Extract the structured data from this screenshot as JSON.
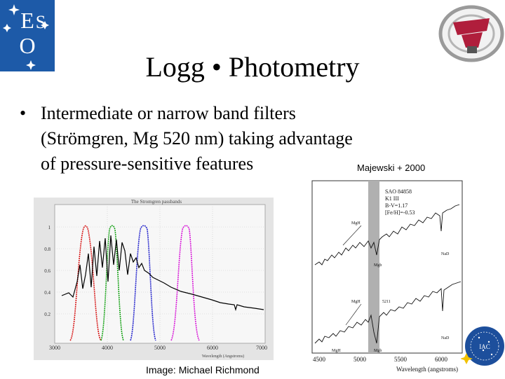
{
  "slide": {
    "title": "Logg • Photometry",
    "bullet_char": "•",
    "bullet_lines": [
      "Intermediate or narrow band filters",
      "(Strömgren, Mg 520 nm) taking advantage",
      "of pressure-sensitive features"
    ],
    "credit_right": "Majewski + 2000",
    "credit_left": "Image: Michael Richmond"
  },
  "logos": {
    "eso_letters": [
      "E",
      "S",
      "O"
    ],
    "iac_text": "IAC"
  },
  "left_figure": {
    "plot_title": "The Stromgren passbands",
    "x_tick_labels": [
      "3000",
      "4000",
      "5000",
      "6000",
      "7000"
    ],
    "y_tick_labels": [
      "1",
      "0.8",
      "0.6",
      "0.4",
      "0.2"
    ],
    "x_label": "Wavelength (Angstroms)",
    "series_colors": [
      "#d81b1b",
      "#19a319",
      "#2222cc",
      "#d81bd8",
      "#000000"
    ]
  },
  "right_figure": {
    "star_info": [
      "SAO 84858",
      "K1 III",
      "B-V=1.17",
      "[Fe/H]=-0.53"
    ],
    "feature_labels": {
      "mgh_upper": "MgH",
      "nad_upper": "NaD",
      "mgb_upper": "Mgb",
      "mgh_lower": "MgH",
      "id_lower": "5211",
      "nad_lower": "NaD",
      "mgh_bottom": "MgH",
      "mgb_bottom": "Mgb"
    },
    "x_tick_labels": [
      "4500",
      "5000",
      "5500",
      "6000"
    ],
    "x_label": "Wavelength (angstroms)"
  }
}
